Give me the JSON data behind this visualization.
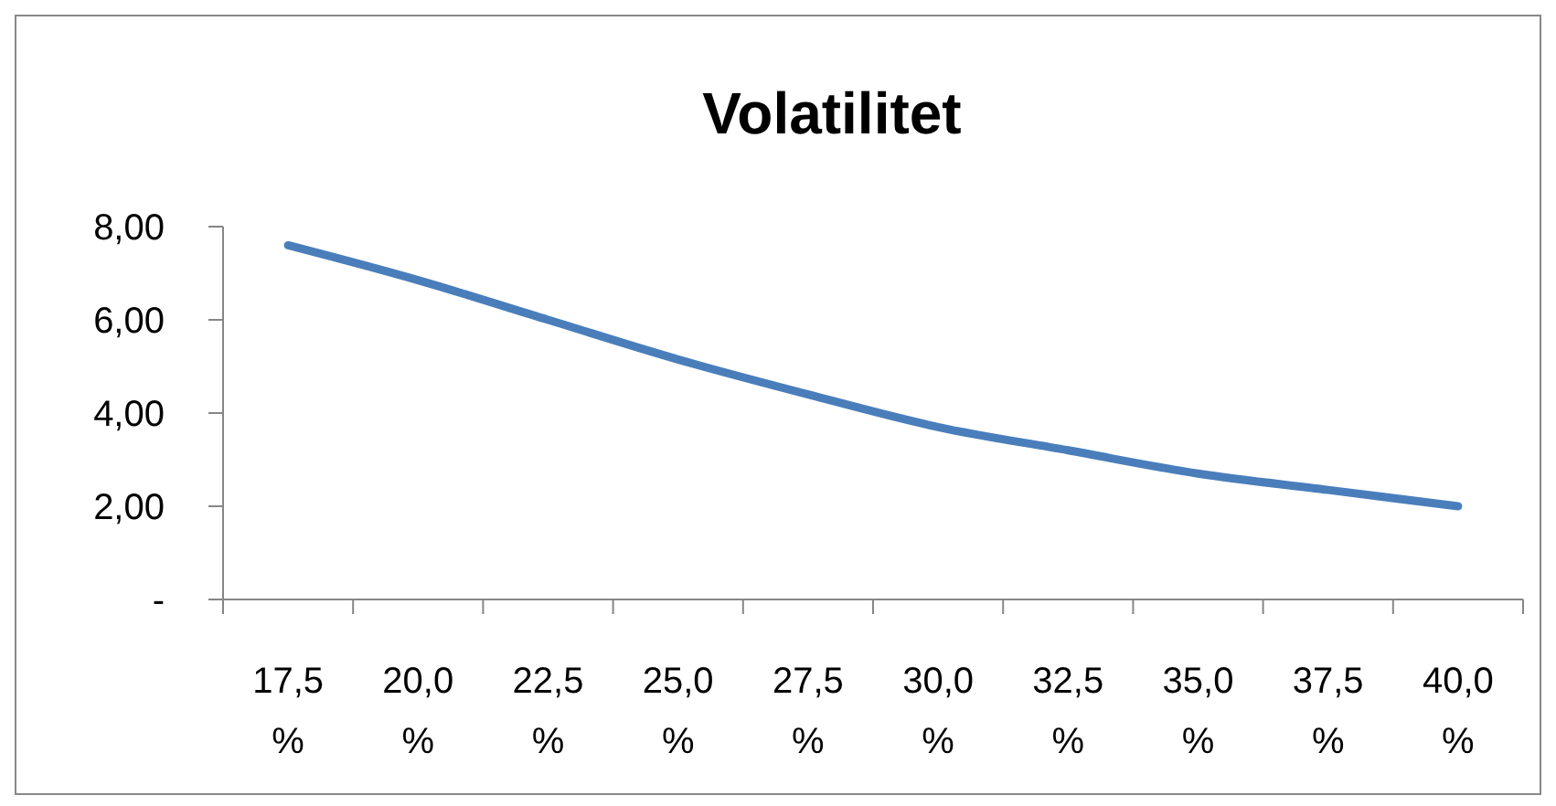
{
  "chart_data": {
    "type": "line",
    "title": "Volatilitet",
    "categories": [
      "17,5 %",
      "20,0 %",
      "22,5 %",
      "25,0 %",
      "27,5 %",
      "30,0 %",
      "32,5 %",
      "35,0 %",
      "37,5 %",
      "40,0 %"
    ],
    "series": [
      {
        "color": "#4a7ebb",
        "values": [
          7.6,
          6.85,
          6.0,
          5.15,
          4.4,
          3.7,
          3.2,
          2.7,
          2.35,
          2.0
        ]
      }
    ],
    "ylim": [
      0,
      8
    ],
    "yticks": [
      {
        "value": 0,
        "label": "-"
      },
      {
        "value": 2,
        "label": "2,00"
      },
      {
        "value": 4,
        "label": "4,00"
      },
      {
        "value": 6,
        "label": "6,00"
      },
      {
        "value": 8,
        "label": "8,00"
      }
    ],
    "marker": "none",
    "line_style": "solid"
  }
}
